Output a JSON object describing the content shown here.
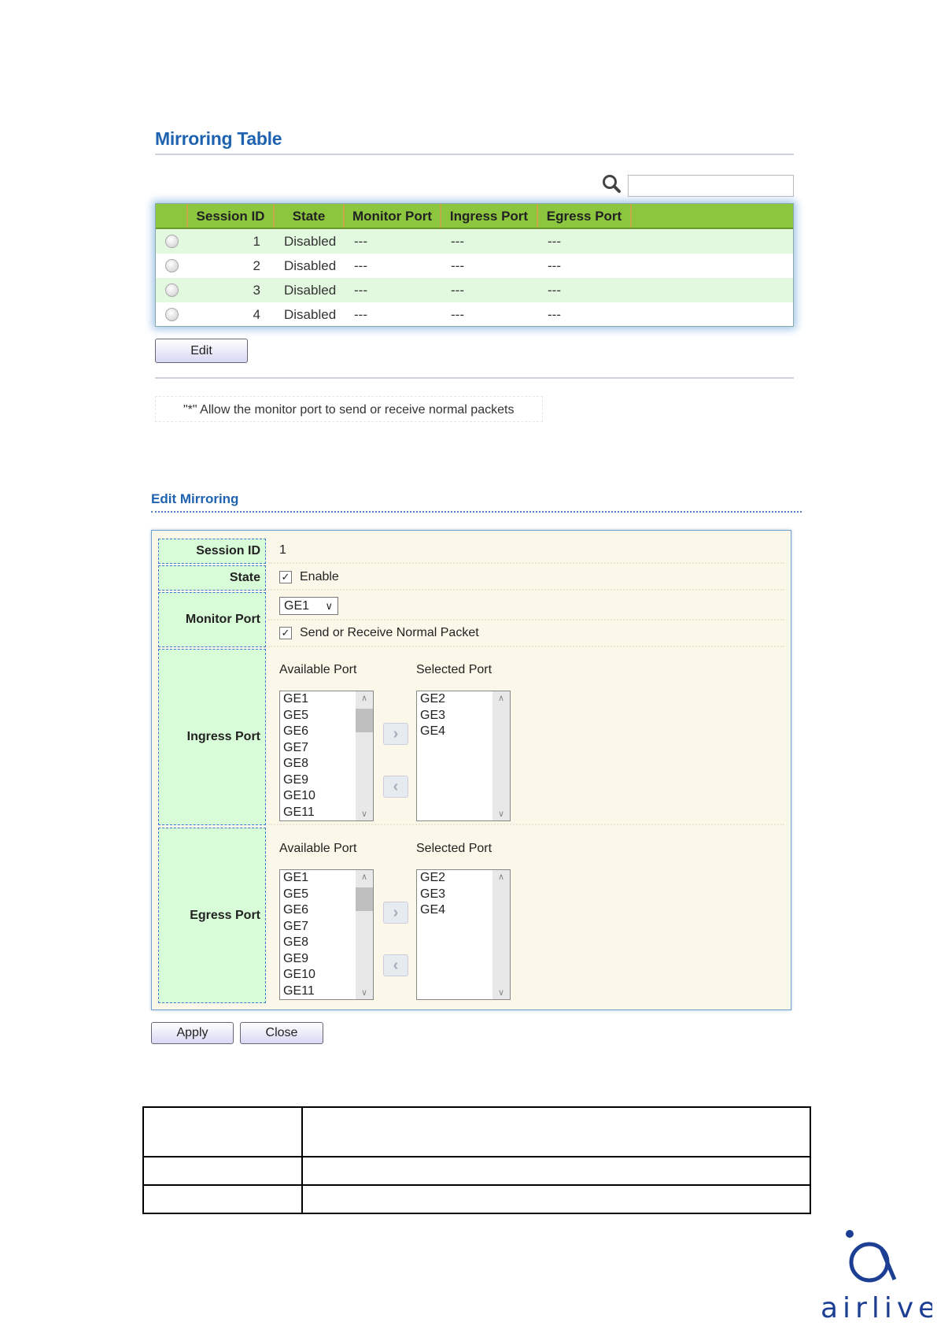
{
  "mirroring_table": {
    "title": "Mirroring Table",
    "search_placeholder": "",
    "columns": [
      "Session ID",
      "State",
      "Monitor Port",
      "Ingress Port",
      "Egress Port"
    ],
    "rows": [
      {
        "session_id": "1",
        "state": "Disabled",
        "monitor": "---",
        "ingress": "---",
        "egress": "---"
      },
      {
        "session_id": "2",
        "state": "Disabled",
        "monitor": "---",
        "ingress": "---",
        "egress": "---"
      },
      {
        "session_id": "3",
        "state": "Disabled",
        "monitor": "---",
        "ingress": "---",
        "egress": "---"
      },
      {
        "session_id": "4",
        "state": "Disabled",
        "monitor": "---",
        "ingress": "---",
        "egress": "---"
      }
    ],
    "edit_label": "Edit",
    "note": "\"*\" Allow the monitor port to send or receive normal packets"
  },
  "edit_mirroring": {
    "title": "Edit Mirroring",
    "session_id_label": "Session ID",
    "session_id": "1",
    "state_label": "State",
    "state_enable_label": "Enable",
    "state_enabled": true,
    "monitor_port_label": "Monitor Port",
    "monitor_port": "GE1",
    "normal_packet_label": "Send or Receive Normal Packet",
    "normal_packet_checked": true,
    "ingress_label": "Ingress Port",
    "egress_label": "Egress Port",
    "available_label": "Available Port",
    "selected_label": "Selected Port",
    "ingress_available": [
      "GE1",
      "GE5",
      "GE6",
      "GE7",
      "GE8",
      "GE9",
      "GE10",
      "GE11"
    ],
    "ingress_selected": [
      "GE2",
      "GE3",
      "GE4"
    ],
    "egress_available": [
      "GE1",
      "GE5",
      "GE6",
      "GE7",
      "GE8",
      "GE9",
      "GE10",
      "GE11"
    ],
    "egress_selected": [
      "GE2",
      "GE3",
      "GE4"
    ],
    "apply_label": "Apply",
    "close_label": "Close"
  },
  "logo": {
    "text": "airlive",
    "color": "#1c3f94"
  },
  "colors": {
    "title": "#1f63b0",
    "header_green": "#8cc63f",
    "row_alt": "#e2f8df",
    "label_bg": "#d9fcd8",
    "form_bg": "#fbf8ea"
  }
}
